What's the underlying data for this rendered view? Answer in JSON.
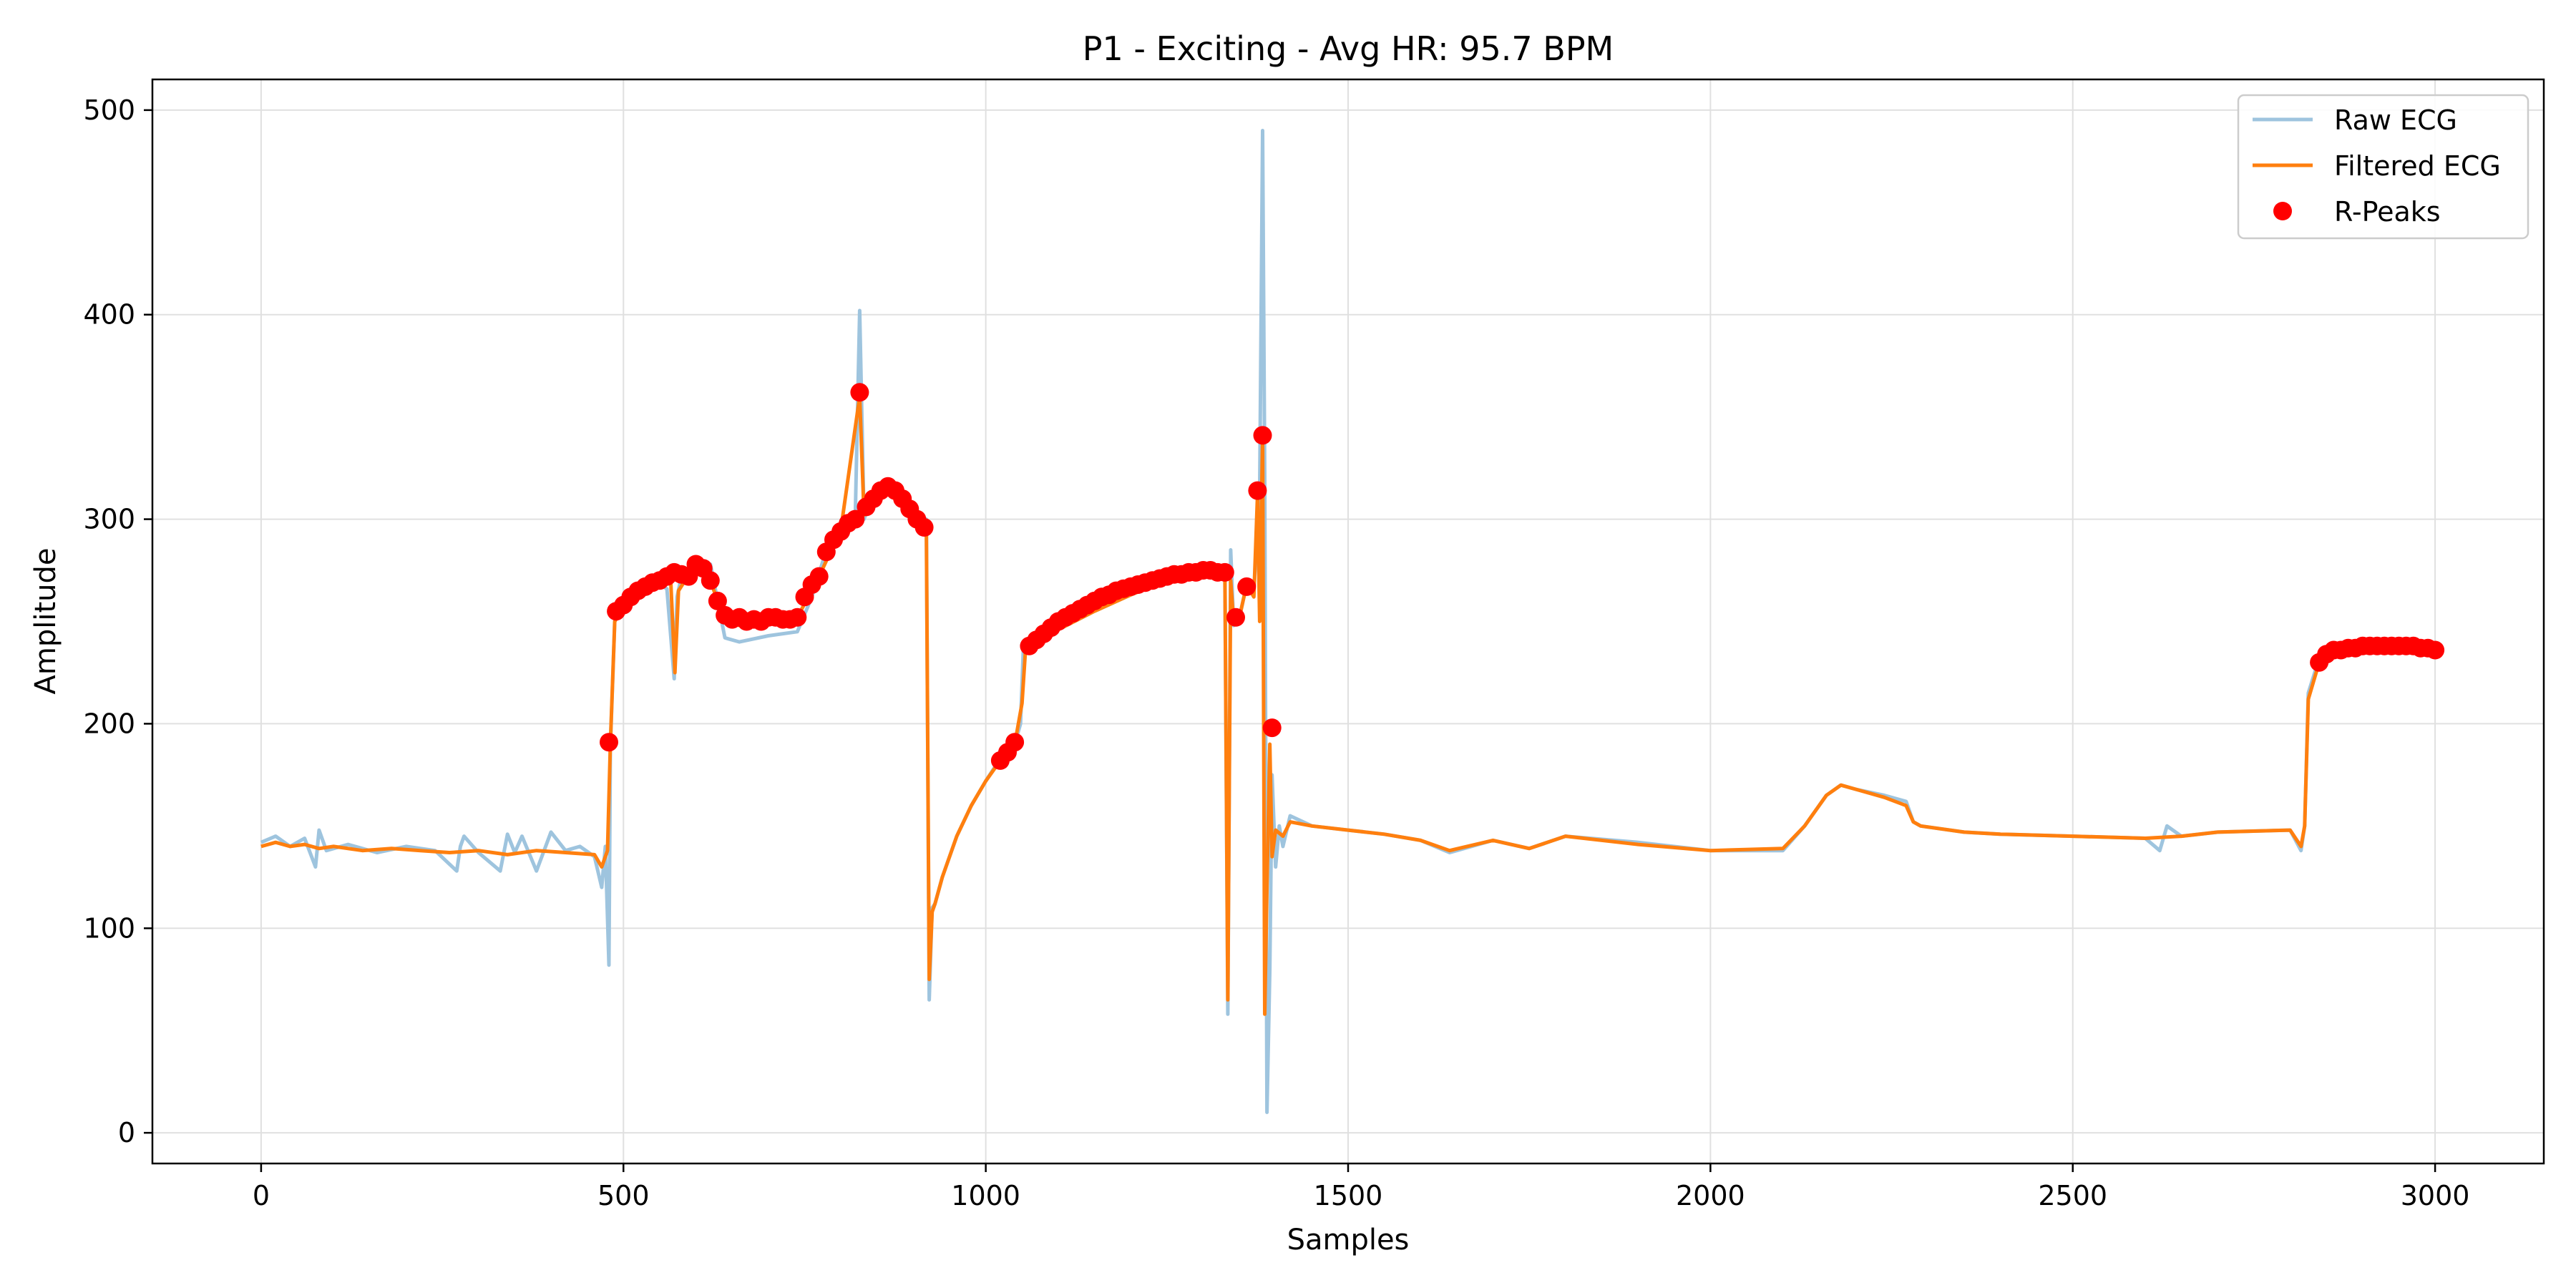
{
  "chart_data": {
    "type": "line",
    "title": "P1 - Exciting - Avg HR: 95.7 BPM",
    "xlabel": "Samples",
    "ylabel": "Amplitude",
    "xlim": [
      -150,
      3150
    ],
    "ylim": [
      -15,
      515
    ],
    "xticks": [
      0,
      500,
      1000,
      1500,
      2000,
      2500,
      3000
    ],
    "yticks": [
      0,
      100,
      200,
      300,
      400,
      500
    ],
    "grid": true,
    "legend_position": "top-right",
    "colors": {
      "raw": "#9ec4de",
      "filtered": "#ff7f0e",
      "peaks": "#ff0000",
      "grid": "#e0e0e0"
    },
    "series": [
      {
        "name": "Raw ECG",
        "type": "line",
        "x": [
          0,
          20,
          40,
          60,
          75,
          80,
          90,
          120,
          160,
          200,
          240,
          270,
          275,
          280,
          300,
          330,
          340,
          350,
          360,
          380,
          400,
          420,
          440,
          460,
          470,
          475,
          480,
          482,
          488,
          495,
          500,
          520,
          540,
          560,
          570,
          574,
          580,
          600,
          620,
          640,
          660,
          700,
          740,
          760,
          780,
          800,
          820,
          826,
          832,
          840,
          860,
          880,
          900,
          918,
          922,
          926,
          930,
          940,
          960,
          980,
          1000,
          1020,
          1040,
          1048,
          1052,
          1060,
          1100,
          1150,
          1200,
          1250,
          1300,
          1330,
          1334,
          1338,
          1342,
          1350,
          1360,
          1370,
          1378,
          1382,
          1385,
          1388,
          1392,
          1395,
          1400,
          1405,
          1410,
          1420,
          1450,
          1500,
          1550,
          1600,
          1640,
          1700,
          1750,
          1800,
          1900,
          2000,
          2100,
          2130,
          2160,
          2180,
          2200,
          2240,
          2270,
          2280,
          2290,
          2350,
          2400,
          2500,
          2600,
          2620,
          2630,
          2650,
          2700,
          2800,
          2815,
          2820,
          2825,
          2840,
          2860,
          2900,
          2950,
          3000
        ],
        "y": [
          142,
          145,
          140,
          144,
          130,
          148,
          138,
          141,
          137,
          140,
          138,
          128,
          140,
          145,
          137,
          128,
          146,
          137,
          145,
          128,
          147,
          138,
          140,
          135,
          120,
          140,
          82,
          189,
          250,
          255,
          258,
          265,
          270,
          266,
          222,
          262,
          272,
          274,
          278,
          242,
          240,
          243,
          245,
          262,
          285,
          295,
          302,
          402,
          300,
          308,
          315,
          312,
          303,
          300,
          65,
          110,
          112,
          125,
          145,
          160,
          172,
          183,
          190,
          200,
          238,
          240,
          246,
          255,
          263,
          270,
          274,
          275,
          58,
          285,
          248,
          252,
          268,
          265,
          312,
          490,
          320,
          10,
          80,
          175,
          130,
          150,
          140,
          155,
          150,
          148,
          146,
          143,
          137,
          143,
          139,
          145,
          142,
          138,
          138,
          150,
          165,
          170,
          168,
          165,
          162,
          152,
          150,
          147,
          146,
          145,
          144,
          138,
          150,
          145,
          147,
          148,
          138,
          150,
          215,
          232,
          235,
          237,
          238,
          236
        ]
      },
      {
        "name": "Filtered ECG",
        "type": "line",
        "x": [
          0,
          20,
          40,
          60,
          80,
          100,
          140,
          180,
          220,
          260,
          300,
          340,
          380,
          420,
          460,
          470,
          478,
          482,
          488,
          495,
          510,
          530,
          550,
          565,
          571,
          576,
          585,
          600,
          615,
          630,
          645,
          660,
          700,
          740,
          770,
          800,
          826,
          832,
          850,
          870,
          900,
          918,
          922,
          926,
          930,
          940,
          960,
          980,
          1000,
          1020,
          1040,
          1050,
          1055,
          1060,
          1100,
          1150,
          1200,
          1250,
          1300,
          1330,
          1334,
          1338,
          1342,
          1350,
          1360,
          1370,
          1375,
          1378,
          1382,
          1385,
          1388,
          1392,
          1395,
          1400,
          1410,
          1420,
          1450,
          1500,
          1550,
          1600,
          1640,
          1700,
          1750,
          1800,
          1900,
          2000,
          2100,
          2130,
          2160,
          2180,
          2200,
          2240,
          2270,
          2280,
          2290,
          2350,
          2400,
          2500,
          2600,
          2650,
          2700,
          2800,
          2815,
          2820,
          2825,
          2840,
          2860,
          2900,
          2950,
          3000
        ],
        "y": [
          140,
          142,
          140,
          141,
          139,
          140,
          138,
          139,
          138,
          137,
          138,
          136,
          138,
          137,
          136,
          130,
          138,
          190,
          250,
          254,
          260,
          265,
          268,
          272,
          225,
          265,
          270,
          273,
          275,
          260,
          250,
          248,
          249,
          252,
          272,
          295,
          360,
          302,
          310,
          315,
          305,
          295,
          75,
          108,
          112,
          125,
          145,
          160,
          172,
          182,
          190,
          210,
          237,
          240,
          246,
          255,
          263,
          270,
          274,
          274,
          65,
          270,
          250,
          252,
          268,
          262,
          312,
          250,
          341,
          58,
          120,
          190,
          135,
          148,
          145,
          152,
          150,
          148,
          146,
          143,
          138,
          143,
          139,
          145,
          141,
          138,
          139,
          150,
          165,
          170,
          168,
          164,
          160,
          152,
          150,
          147,
          146,
          145,
          144,
          145,
          147,
          148,
          140,
          150,
          212,
          230,
          234,
          236,
          237,
          236
        ]
      },
      {
        "name": "R-Peaks",
        "type": "scatter",
        "x": [
          480,
          490,
          500,
          510,
          520,
          530,
          540,
          550,
          560,
          570,
          580,
          590,
          600,
          610,
          620,
          630,
          640,
          650,
          660,
          670,
          680,
          690,
          700,
          710,
          720,
          730,
          740,
          750,
          760,
          770,
          780,
          790,
          800,
          810,
          820,
          826,
          835,
          845,
          855,
          865,
          875,
          885,
          895,
          905,
          915,
          1020,
          1030,
          1040,
          1060,
          1070,
          1080,
          1090,
          1100,
          1110,
          1120,
          1130,
          1140,
          1150,
          1160,
          1170,
          1180,
          1190,
          1200,
          1210,
          1220,
          1230,
          1240,
          1250,
          1260,
          1270,
          1280,
          1290,
          1300,
          1310,
          1320,
          1330,
          1345,
          1360,
          1375,
          1382,
          1395,
          2840,
          2850,
          2860,
          2870,
          2880,
          2890,
          2900,
          2910,
          2920,
          2930,
          2940,
          2950,
          2960,
          2970,
          2980,
          2990,
          3000
        ],
        "y": [
          191,
          255,
          258,
          262,
          265,
          267,
          269,
          270,
          272,
          274,
          273,
          272,
          278,
          276,
          270,
          260,
          253,
          251,
          252,
          250,
          251,
          250,
          252,
          252,
          251,
          251,
          252,
          262,
          268,
          272,
          284,
          290,
          294,
          298,
          300,
          362,
          306,
          310,
          314,
          316,
          314,
          310,
          305,
          300,
          296,
          182,
          186,
          191,
          238,
          241,
          244,
          247,
          250,
          252,
          254,
          256,
          258,
          260,
          262,
          263,
          265,
          266,
          267,
          268,
          269,
          270,
          271,
          272,
          273,
          273,
          274,
          274,
          275,
          275,
          274,
          274,
          252,
          267,
          314,
          341,
          198,
          230,
          234,
          236,
          236,
          237,
          237,
          238,
          238,
          238,
          238,
          238,
          238,
          238,
          238,
          237,
          237,
          236
        ]
      }
    ]
  }
}
